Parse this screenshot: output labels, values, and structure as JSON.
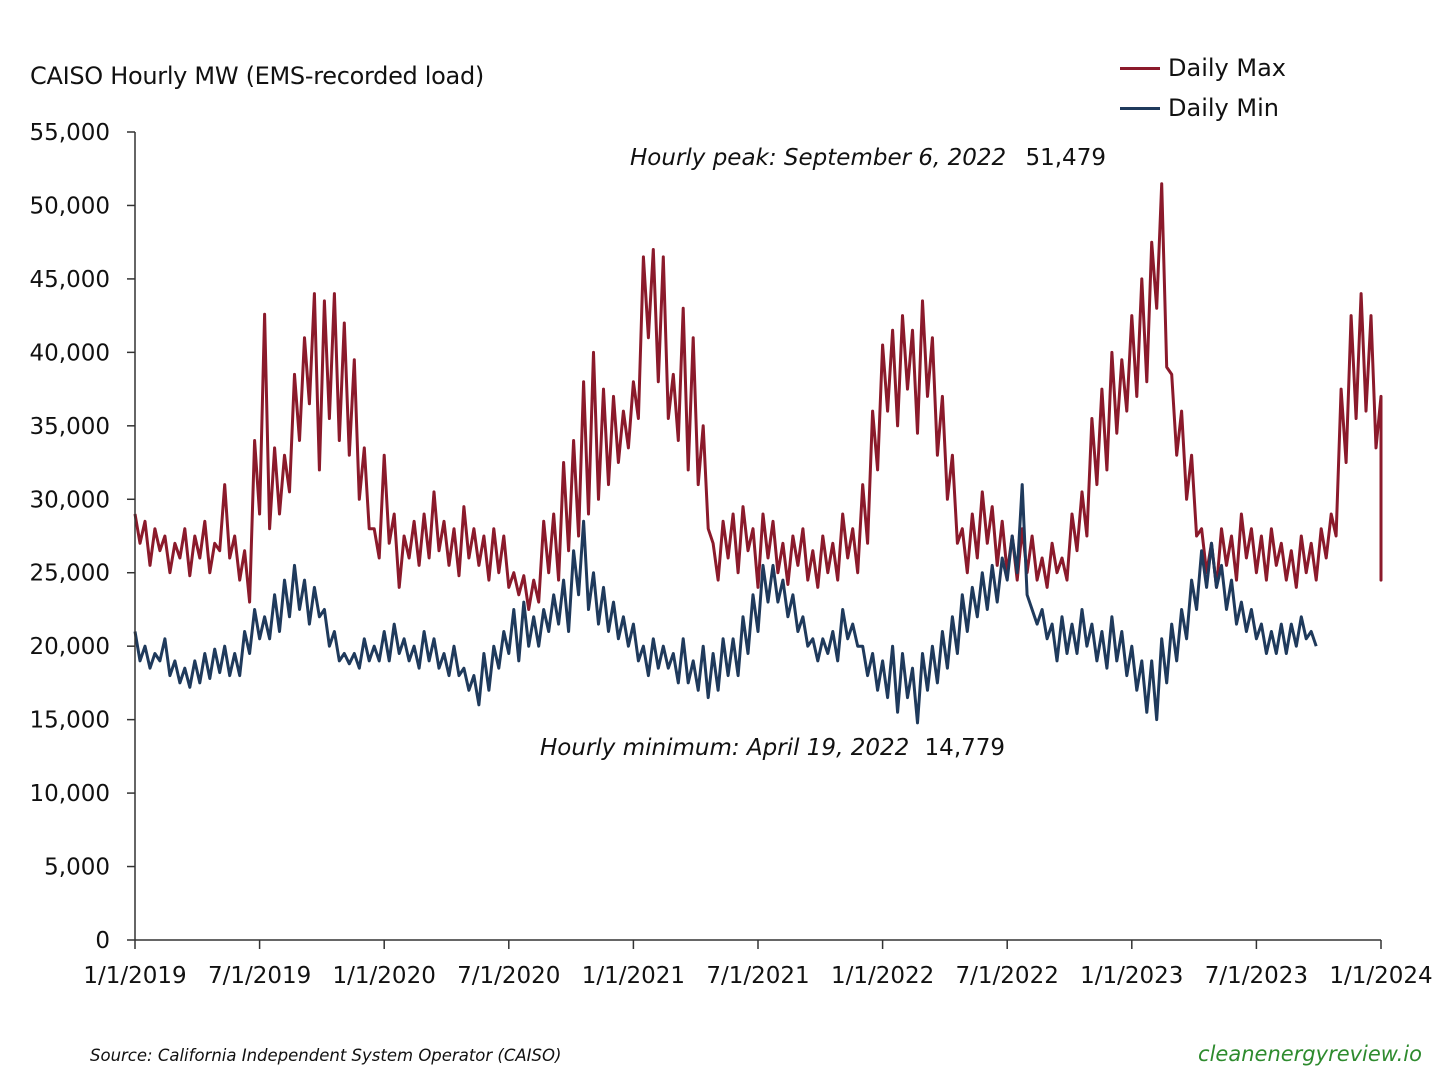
{
  "chart_data": {
    "type": "line",
    "title": "CAISO Hourly MW (EMS-recorded load)",
    "xlabel": "",
    "ylabel": "CAISO Hourly MW (EMS-recorded load)",
    "ylim": [
      0,
      55000
    ],
    "xlim": [
      "2019-01-01",
      "2024-01-01"
    ],
    "grid": false,
    "legend_position": "top-right",
    "y_ticks": [
      "0",
      "5,000",
      "10,000",
      "15,000",
      "20,000",
      "25,000",
      "30,000",
      "35,000",
      "40,000",
      "45,000",
      "50,000",
      "55,000"
    ],
    "y_tick_values": [
      0,
      5000,
      10000,
      15000,
      20000,
      25000,
      30000,
      35000,
      40000,
      45000,
      50000,
      55000
    ],
    "x_ticks": [
      "1/1/2019",
      "7/1/2019",
      "1/1/2020",
      "7/1/2020",
      "1/1/2021",
      "7/1/2021",
      "1/1/2022",
      "7/1/2022",
      "1/1/2023",
      "7/1/2023",
      "1/1/2024"
    ],
    "x_tick_years": [
      2019.0,
      2019.5,
      2020.0,
      2020.5,
      2021.0,
      2021.5,
      2022.0,
      2022.5,
      2023.0,
      2023.5,
      2024.0
    ],
    "x_unit": "fractional year",
    "series": [
      {
        "name": "Daily Max",
        "color": "#8b1a2b",
        "x_start": 2019.0,
        "x_step": 0.02,
        "values": [
          29000,
          27000,
          28500,
          25500,
          28000,
          26500,
          27500,
          25000,
          27000,
          26000,
          28000,
          24800,
          27500,
          26000,
          28500,
          25000,
          27000,
          26500,
          31000,
          26000,
          27500,
          24500,
          26500,
          23000,
          34000,
          29000,
          42600,
          28000,
          33500,
          29000,
          33000,
          30500,
          38500,
          34000,
          41000,
          36500,
          44000,
          32000,
          43500,
          35500,
          44000,
          34000,
          42000,
          33000,
          39500,
          30000,
          33500,
          28000,
          28000,
          26000,
          33000,
          27000,
          29000,
          24000,
          27500,
          26000,
          28500,
          25500,
          29000,
          26000,
          30500,
          26500,
          28500,
          25500,
          28000,
          24800,
          29500,
          26000,
          28000,
          25500,
          27500,
          24500,
          28000,
          25000,
          27500,
          24000,
          25000,
          23500,
          24800,
          22500,
          24500,
          23000,
          28500,
          25000,
          29000,
          24500,
          32500,
          26500,
          34000,
          27500,
          38000,
          29000,
          40000,
          30000,
          37500,
          31000,
          37000,
          32500,
          36000,
          33500,
          38000,
          35500,
          46500,
          41000,
          47000,
          38000,
          46500,
          35500,
          38500,
          34000,
          43000,
          32000,
          41000,
          31000,
          35000,
          28000,
          27000,
          24500,
          28500,
          26000,
          29000,
          25000,
          29500,
          26500,
          28000,
          24000,
          29000,
          26000,
          28500,
          25000,
          27000,
          24200,
          27500,
          25500,
          28000,
          24500,
          26500,
          24000,
          27500,
          25000,
          27000,
          24500,
          29000,
          26000,
          28000,
          25000,
          31000,
          27000,
          36000,
          32000,
          40500,
          36000,
          41500,
          35000,
          42500,
          37500,
          41500,
          34500,
          43500,
          37000,
          41000,
          33000,
          37000,
          30000,
          33000,
          27000,
          28000,
          25000,
          29000,
          26000,
          30500,
          27000,
          29500,
          25500,
          28500,
          25000,
          27500,
          24500,
          28000,
          25000,
          27500,
          24500,
          26000,
          24000,
          27000,
          25000,
          26000,
          24500,
          29000,
          26500,
          30500,
          27500,
          35500,
          31000,
          37500,
          32000,
          40000,
          34500,
          39500,
          36000,
          42500,
          37000,
          45000,
          38000,
          47500,
          43000,
          51479,
          39000,
          38500,
          33000,
          36000,
          30000,
          33000,
          27500,
          28000,
          25000,
          27000,
          24000,
          28000,
          25500,
          27500,
          24500,
          29000,
          26000,
          28000,
          25000,
          27500,
          24500,
          28000,
          25500,
          27000,
          24500,
          26500,
          24000,
          27500,
          25000,
          27000,
          24500,
          28000,
          26000,
          29000,
          27500,
          37500,
          32500,
          42500,
          35500,
          44000,
          36000,
          42500,
          33500,
          37000,
          30000,
          33000,
          26500,
          29000,
          25500,
          28500,
          24500,
          28000,
          25500,
          28500,
          24500,
          27500,
          25500
        ]
      },
      {
        "name": "Daily Min",
        "color": "#1f3a5c",
        "x_start": 2019.0,
        "x_step": 0.02,
        "values": [
          21000,
          19000,
          20000,
          18500,
          19500,
          19000,
          20500,
          18000,
          19000,
          17500,
          18500,
          17200,
          19000,
          17500,
          19500,
          17800,
          19800,
          18200,
          20000,
          18000,
          19500,
          18000,
          21000,
          19500,
          22500,
          20500,
          22000,
          20500,
          23500,
          21000,
          24500,
          22000,
          25500,
          22500,
          24500,
          21500,
          24000,
          22000,
          22500,
          20000,
          21000,
          19000,
          19500,
          18800,
          19500,
          18500,
          20500,
          19000,
          20000,
          19000,
          21000,
          19000,
          21500,
          19500,
          20500,
          19000,
          20000,
          18500,
          21000,
          19000,
          20500,
          18500,
          19500,
          18000,
          20000,
          18000,
          18500,
          17000,
          18000,
          16000,
          19500,
          17000,
          20000,
          18500,
          21000,
          19500,
          22500,
          19000,
          23000,
          20000,
          22000,
          20000,
          22500,
          21000,
          23500,
          21500,
          24500,
          21000,
          26500,
          23500,
          28500,
          22500,
          25000,
          21500,
          24000,
          21000,
          23000,
          20500,
          22000,
          20000,
          21500,
          19000,
          20000,
          18000,
          20500,
          18500,
          20000,
          18500,
          19500,
          17500,
          20500,
          17500,
          19000,
          17000,
          20000,
          16500,
          19500,
          17000,
          20500,
          18000,
          20500,
          18000,
          22000,
          19500,
          23500,
          21000,
          25500,
          23000,
          25500,
          23000,
          24500,
          22000,
          23500,
          21000,
          22000,
          20000,
          20500,
          19000,
          20500,
          19500,
          21000,
          19000,
          22500,
          20500,
          21500,
          20000,
          20000,
          18000,
          19500,
          17000,
          19000,
          16500,
          20000,
          15500,
          19500,
          16500,
          18500,
          14779,
          19500,
          17000,
          20000,
          17500,
          21000,
          18500,
          22000,
          19500,
          23500,
          21000,
          24000,
          22000,
          25000,
          22500,
          25500,
          23000,
          26000,
          24500,
          27500,
          25000,
          31000,
          23500,
          22500,
          21500,
          22500,
          20500,
          21500,
          19000,
          22000,
          19500,
          21500,
          19500,
          22500,
          20000,
          21500,
          19000,
          21000,
          18500,
          22000,
          19000,
          21000,
          18000,
          20000,
          17000,
          19000,
          15500,
          19000,
          15000,
          20500,
          17500,
          21500,
          19000,
          22500,
          20500,
          24500,
          22500,
          26500,
          24000,
          27000,
          24000,
          25500,
          22500,
          24500,
          21500,
          23000,
          21000,
          22500,
          20500,
          21500,
          19500,
          21000,
          19500,
          21500,
          19500,
          21500,
          20000,
          22000,
          20500,
          21000,
          20000
        ]
      }
    ],
    "annotations": [
      {
        "label": "Hourly peak: September 6, 2022",
        "value": "51,479",
        "date": "2022-09-06",
        "series": "Daily Max"
      },
      {
        "label": "Hourly minimum: April 19, 2022",
        "value": "14,779",
        "date": "2022-04-19",
        "series": "Daily Min"
      }
    ],
    "source": "Source: California Independent System Operator (CAISO)",
    "brand": "cleanenergyreview.io",
    "brand_color": "#2e8b2e"
  }
}
